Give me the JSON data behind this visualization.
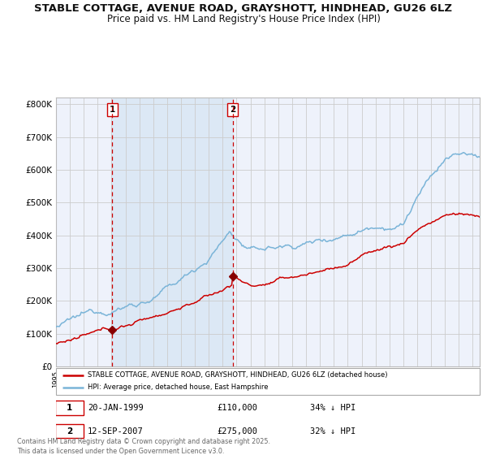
{
  "title": "STABLE COTTAGE, AVENUE ROAD, GRAYSHOTT, HINDHEAD, GU26 6LZ",
  "subtitle": "Price paid vs. HM Land Registry's House Price Index (HPI)",
  "title_fontsize": 9.5,
  "subtitle_fontsize": 8.5,
  "bg_color": "#ffffff",
  "plot_bg_color": "#eef2fb",
  "grid_color": "#cccccc",
  "hpi_color": "#7ab4d8",
  "price_color": "#cc0000",
  "marker_color": "#880000",
  "vline_color": "#cc0000",
  "shade_color": "#dce8f5",
  "ylim": [
    0,
    820000
  ],
  "yticks": [
    0,
    100000,
    200000,
    300000,
    400000,
    500000,
    600000,
    700000,
    800000
  ],
  "purchase1_date": "20-JAN-1999",
  "purchase1_price": 110000,
  "purchase1_pct": "34%",
  "purchase1_year": 1999.05,
  "purchase2_date": "12-SEP-2007",
  "purchase2_price": 275000,
  "purchase2_pct": "32%",
  "purchase2_year": 2007.71,
  "legend_label1": "STABLE COTTAGE, AVENUE ROAD, GRAYSHOTT, HINDHEAD, GU26 6LZ (detached house)",
  "legend_label2": "HPI: Average price, detached house, East Hampshire",
  "footnote": "Contains HM Land Registry data © Crown copyright and database right 2025.\nThis data is licensed under the Open Government Licence v3.0.",
  "xstart": 1995.0,
  "xend": 2025.5
}
